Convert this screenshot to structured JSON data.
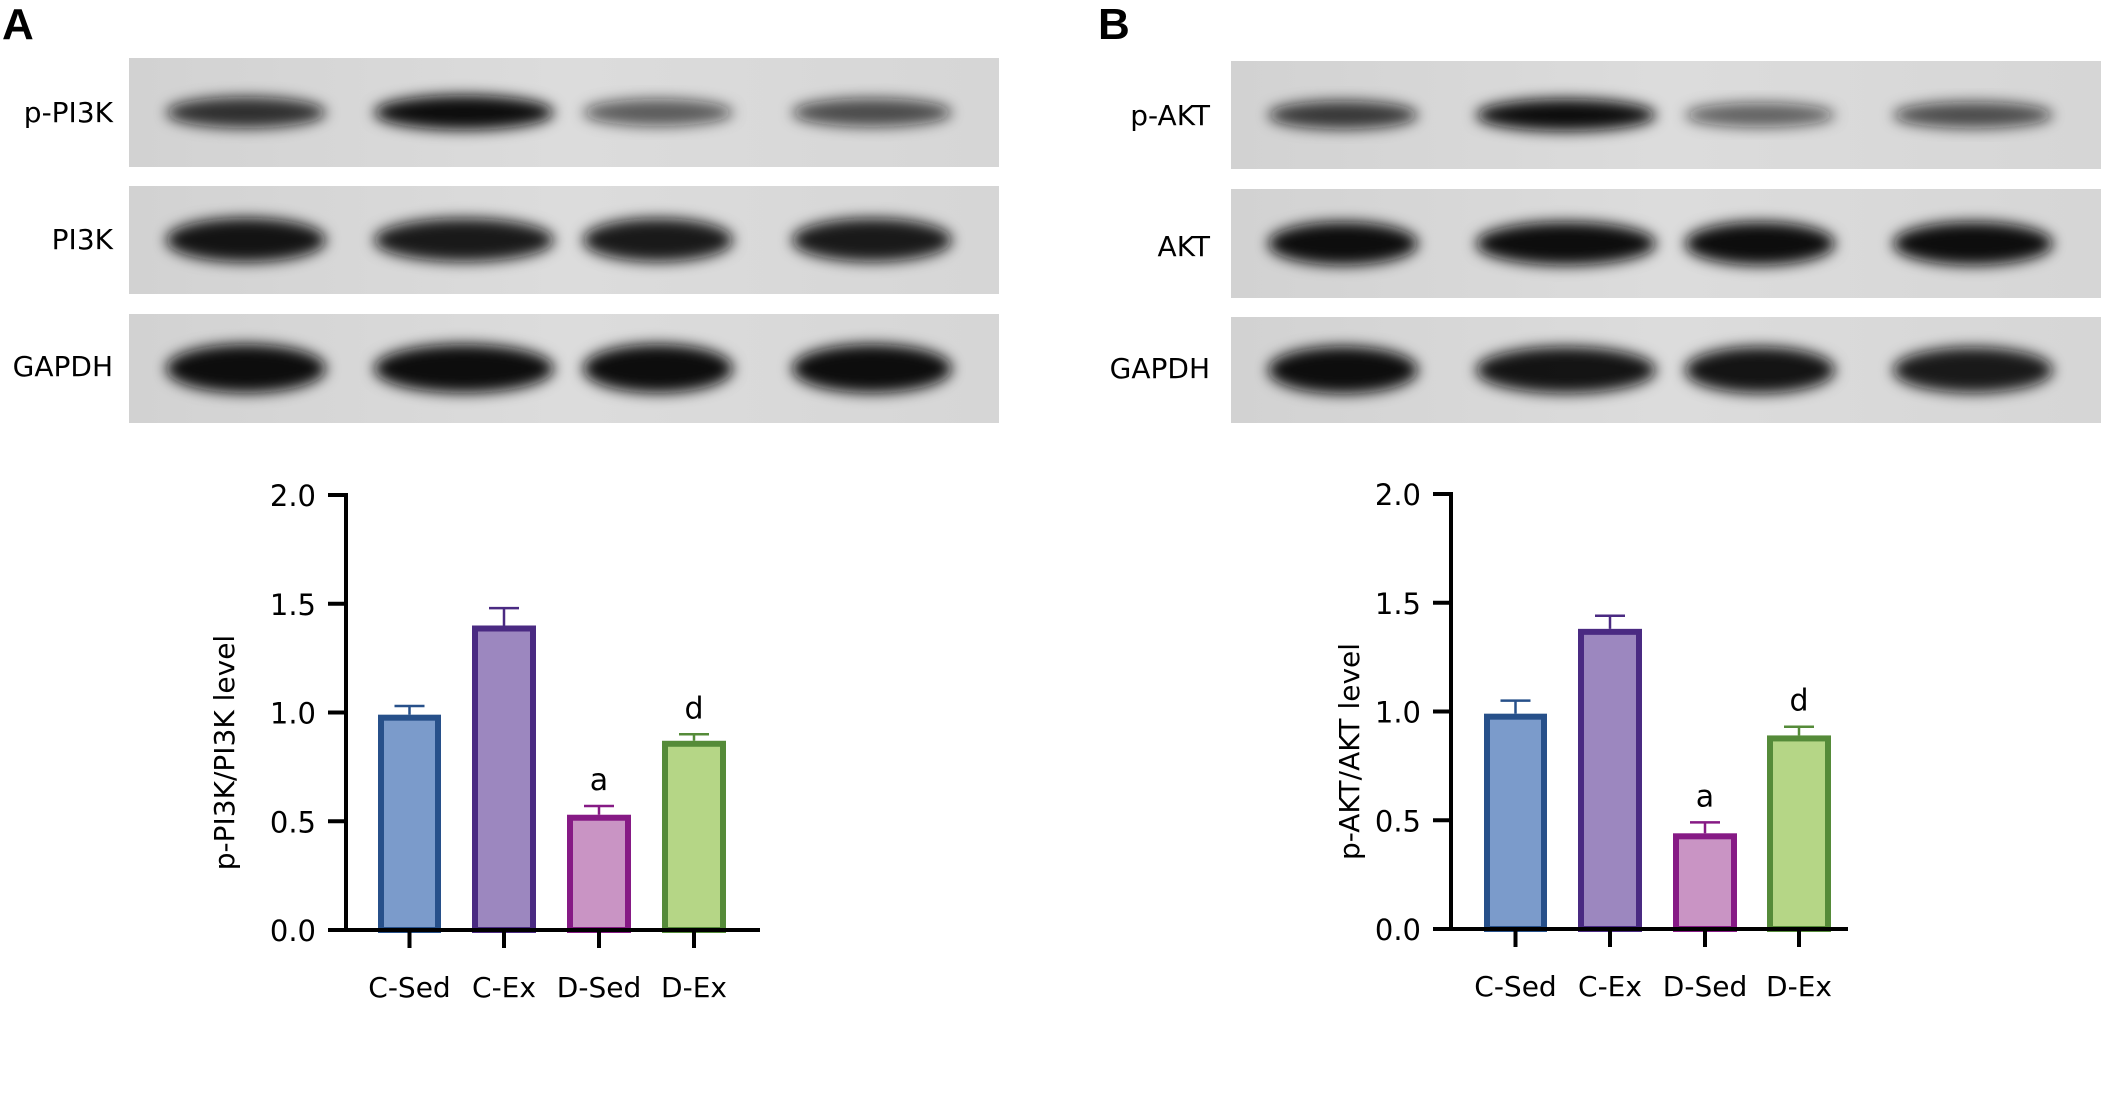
{
  "panels": [
    {
      "letter": "A",
      "blot_rows": [
        "p-PI3K",
        "PI3K",
        "GAPDH"
      ]
    },
    {
      "letter": "B",
      "blot_rows": [
        "p-AKT",
        "AKT",
        "GAPDH"
      ]
    }
  ],
  "chart_data": [
    {
      "type": "bar",
      "title": "",
      "xlabel": "",
      "ylabel": "p-PI3K/PI3K level",
      "categories": [
        "C-Sed",
        "C-Ex",
        "D-Sed",
        "D-Ex"
      ],
      "values": [
        0.99,
        1.4,
        0.53,
        0.87
      ],
      "error_upper": [
        1.03,
        1.48,
        0.57,
        0.9
      ],
      "annotations": [
        "",
        "",
        "a",
        "d"
      ],
      "ylim": [
        0,
        2.0
      ],
      "yticks": [
        "0.0",
        "0.5",
        "1.0",
        "1.5",
        "2.0"
      ],
      "grid": false,
      "colors": {
        "fill": [
          "#7b9bcb",
          "#9c87bf",
          "#c994c4",
          "#b5d686"
        ],
        "stroke": [
          "#27508a",
          "#4a2a82",
          "#861a85",
          "#558b39"
        ]
      }
    },
    {
      "type": "bar",
      "title": "",
      "xlabel": "",
      "ylabel": "p-AKT/AKT level",
      "categories": [
        "C-Sed",
        "C-Ex",
        "D-Sed",
        "D-Ex"
      ],
      "values": [
        0.99,
        1.38,
        0.44,
        0.89
      ],
      "error_upper": [
        1.05,
        1.44,
        0.49,
        0.93
      ],
      "annotations": [
        "",
        "",
        "a",
        "d"
      ],
      "ylim": [
        0,
        2.0
      ],
      "yticks": [
        "0.0",
        "0.5",
        "1.0",
        "1.5",
        "2.0"
      ],
      "grid": false,
      "colors": {
        "fill": [
          "#7b9bcb",
          "#9c87bf",
          "#c994c4",
          "#b5d686"
        ],
        "stroke": [
          "#27508a",
          "#4a2a82",
          "#861a85",
          "#558b39"
        ]
      }
    }
  ]
}
